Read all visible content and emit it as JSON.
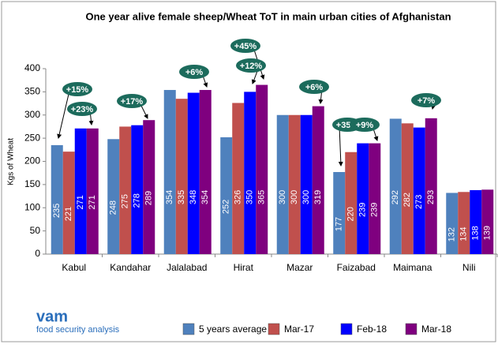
{
  "chart_data": {
    "type": "bar",
    "title": "One year alive female sheep/Wheat ToT in main urban cities of Afghanistan",
    "y_label": "Kgs of Wheat",
    "categories": [
      "Kabul",
      "Kandahar",
      "Jalalabad",
      "Hirat",
      "Mazar",
      "Faizabad",
      "Maimana",
      "Nili"
    ],
    "series": [
      {
        "name": "5 years average",
        "color": "#4f81bd",
        "values": [
          235,
          248,
          354,
          252,
          300,
          177,
          292,
          132
        ]
      },
      {
        "name": "Mar-17",
        "color": "#c0504d",
        "values": [
          221,
          275,
          335,
          326,
          300,
          220,
          282,
          134
        ]
      },
      {
        "name": "Feb-18",
        "color": "#0000ff",
        "values": [
          271,
          278,
          348,
          350,
          300,
          239,
          273,
          138
        ]
      },
      {
        "name": "Mar-18",
        "color": "#7f007f",
        "values": [
          271,
          289,
          354,
          365,
          319,
          239,
          293,
          139
        ]
      }
    ],
    "ylim": [
      0,
      400
    ],
    "yticks": [
      0,
      50,
      100,
      150,
      200,
      250,
      300,
      350,
      400
    ],
    "grid": false,
    "legend": "bottom",
    "annotations": [
      "+15%",
      "+23%",
      "+17%",
      "+6%",
      "+45%",
      "+12%",
      "+6%",
      "+35%",
      "+9%",
      "+7%"
    ],
    "logo": {
      "name": "vam",
      "tagline": "food security analysis"
    }
  }
}
